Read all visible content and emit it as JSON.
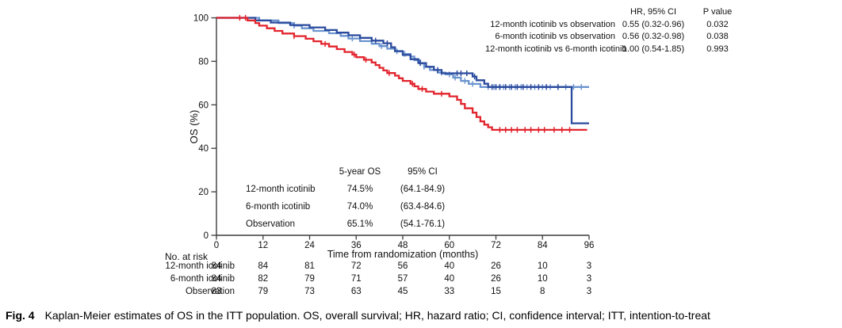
{
  "figure": {
    "caption_label": "Fig. 4",
    "caption_text": "Kaplan-Meier estimates of OS in the ITT population. OS, overall survival; HR, hazard ratio; CI, confidence interval; ITT, intention-to-treat"
  },
  "colors": {
    "dark_blue": "#2a4a9d",
    "light_blue": "#6b94cf",
    "red": "#e2242d",
    "axis": "#3c3c3c",
    "text": "#111111"
  },
  "hr_table": {
    "headers": [
      "HR, 95% CI",
      "P value"
    ],
    "rows": [
      {
        "label": "12-month icotinib vs observation",
        "hr_ci": "0.55 (0.32-0.96)",
        "p": "0.032"
      },
      {
        "label": "6-month icotinib vs observation",
        "hr_ci": "0.56 (0.32-0.98)",
        "p": "0.038"
      },
      {
        "label": "12-month icotinib vs 6-month icotinib",
        "hr_ci": "1.00 (0.54-1.85)",
        "p": "0.993"
      }
    ]
  },
  "legend": {
    "headers": [
      "5-year OS",
      "95% CI"
    ],
    "rows": [
      {
        "label": "12-month icotinib",
        "os": "74.5%",
        "ci": "(64.1-84.9)",
        "color_key": "dark_blue"
      },
      {
        "label": "6-month icotinib",
        "os": "74.0%",
        "ci": "(63.4-84.6)",
        "color_key": "light_blue"
      },
      {
        "label": "Observation",
        "os": "65.1%",
        "ci": "(54.1-76.1)",
        "color_key": "red"
      }
    ]
  },
  "risk_table": {
    "title": "No. at risk",
    "rows": [
      {
        "label": "12-month icotinib",
        "counts": [
          84,
          84,
          81,
          72,
          56,
          40,
          26,
          10,
          3
        ]
      },
      {
        "label": "6-month icotinib",
        "counts": [
          84,
          82,
          79,
          71,
          57,
          40,
          26,
          10,
          3
        ]
      },
      {
        "label": "Observation",
        "counts": [
          83,
          79,
          73,
          63,
          45,
          33,
          15,
          8,
          3
        ]
      }
    ]
  },
  "chart_data": {
    "type": "line",
    "subtype": "kaplan-meier-step",
    "title": "",
    "xlabel": "Time from randomization (months)",
    "ylabel": "OS (%)",
    "xlim": [
      0,
      96
    ],
    "ylim": [
      0,
      100
    ],
    "x_ticks": [
      0,
      12,
      24,
      36,
      48,
      60,
      72,
      84,
      96
    ],
    "y_ticks": [
      0,
      20,
      40,
      60,
      80,
      100
    ],
    "grid": false,
    "legend_position": "inside-lower-left",
    "series": [
      {
        "name": "12-month icotinib",
        "color_key": "dark_blue",
        "end_month": 96,
        "steps": [
          [
            0,
            100
          ],
          [
            10,
            98.8
          ],
          [
            14,
            97.8
          ],
          [
            19,
            96.7
          ],
          [
            24,
            95.6
          ],
          [
            28,
            94.4
          ],
          [
            31,
            93.2
          ],
          [
            34,
            92
          ],
          [
            37,
            90.8
          ],
          [
            40,
            89.5
          ],
          [
            43,
            88.3
          ],
          [
            45,
            86.5
          ],
          [
            46,
            84.7
          ],
          [
            48,
            82.9
          ],
          [
            50,
            81
          ],
          [
            52,
            79.2
          ],
          [
            54,
            77.5
          ],
          [
            56,
            76
          ],
          [
            58,
            74.5
          ],
          [
            66,
            73
          ],
          [
            67,
            71.3
          ],
          [
            69,
            69.7
          ],
          [
            70,
            68.2
          ],
          [
            91.5,
            51.5
          ]
        ],
        "censors": [
          41,
          44,
          52.5,
          57,
          62,
          63,
          64.5,
          66.5,
          71,
          72,
          73,
          74.5,
          76,
          77.5,
          79,
          81,
          83,
          85,
          88
        ]
      },
      {
        "name": "6-month icotinib",
        "color_key": "light_blue",
        "end_month": 96,
        "steps": [
          [
            0,
            100
          ],
          [
            11,
            98.8
          ],
          [
            16,
            97.6
          ],
          [
            20,
            96.4
          ],
          [
            22,
            95.2
          ],
          [
            25,
            94
          ],
          [
            29,
            92.9
          ],
          [
            32,
            91.7
          ],
          [
            34,
            90.5
          ],
          [
            37,
            89.3
          ],
          [
            40,
            88.1
          ],
          [
            42,
            87
          ],
          [
            44,
            85.8
          ],
          [
            46,
            84.6
          ],
          [
            48,
            83.4
          ],
          [
            50,
            82.2
          ],
          [
            51,
            80.5
          ],
          [
            52.5,
            79
          ],
          [
            53.5,
            77.5
          ],
          [
            55,
            76
          ],
          [
            57,
            74.8
          ],
          [
            59,
            74
          ],
          [
            61,
            72.5
          ],
          [
            63,
            71
          ],
          [
            65,
            69.6
          ],
          [
            68,
            68.2
          ]
        ],
        "censors": [
          20,
          35,
          42.5,
          46.5,
          48.5,
          53.5,
          58,
          60,
          61.5,
          64,
          66,
          70,
          71.5,
          73,
          74,
          75.5,
          77,
          78.5,
          80,
          82,
          84,
          86,
          88,
          90,
          92,
          94
        ]
      },
      {
        "name": "Observation",
        "color_key": "red",
        "end_month": 95.5,
        "steps": [
          [
            0,
            100
          ],
          [
            8,
            98.8
          ],
          [
            10,
            97.6
          ],
          [
            11,
            96.4
          ],
          [
            13,
            95.2
          ],
          [
            15,
            94
          ],
          [
            17,
            92.8
          ],
          [
            20,
            91.6
          ],
          [
            23,
            90.4
          ],
          [
            25,
            89.2
          ],
          [
            27,
            88
          ],
          [
            29,
            86.8
          ],
          [
            31,
            85.6
          ],
          [
            33,
            84.3
          ],
          [
            35,
            83.1
          ],
          [
            36,
            81.9
          ],
          [
            38,
            80.7
          ],
          [
            40,
            79.5
          ],
          [
            41,
            78.3
          ],
          [
            42,
            77
          ],
          [
            43,
            75.8
          ],
          [
            44,
            74.6
          ],
          [
            46,
            73.4
          ],
          [
            47,
            72.2
          ],
          [
            48,
            71
          ],
          [
            50,
            69.7
          ],
          [
            51,
            68.5
          ],
          [
            52,
            67.3
          ],
          [
            54,
            66.1
          ],
          [
            56,
            65.1
          ],
          [
            60,
            63.9
          ],
          [
            62,
            62.3
          ],
          [
            63,
            60.4
          ],
          [
            64,
            58.4
          ],
          [
            66,
            56.4
          ],
          [
            67,
            54.4
          ],
          [
            68,
            52.4
          ],
          [
            69,
            50.9
          ],
          [
            70,
            49.7
          ],
          [
            71,
            48.5
          ]
        ],
        "censors": [
          6,
          7.5,
          20,
          28,
          35.5,
          38.5,
          44.5,
          50.5,
          53,
          58,
          73,
          74.5,
          76,
          77.5,
          79.5,
          81,
          83,
          84.5,
          87,
          89,
          91
        ]
      }
    ]
  }
}
